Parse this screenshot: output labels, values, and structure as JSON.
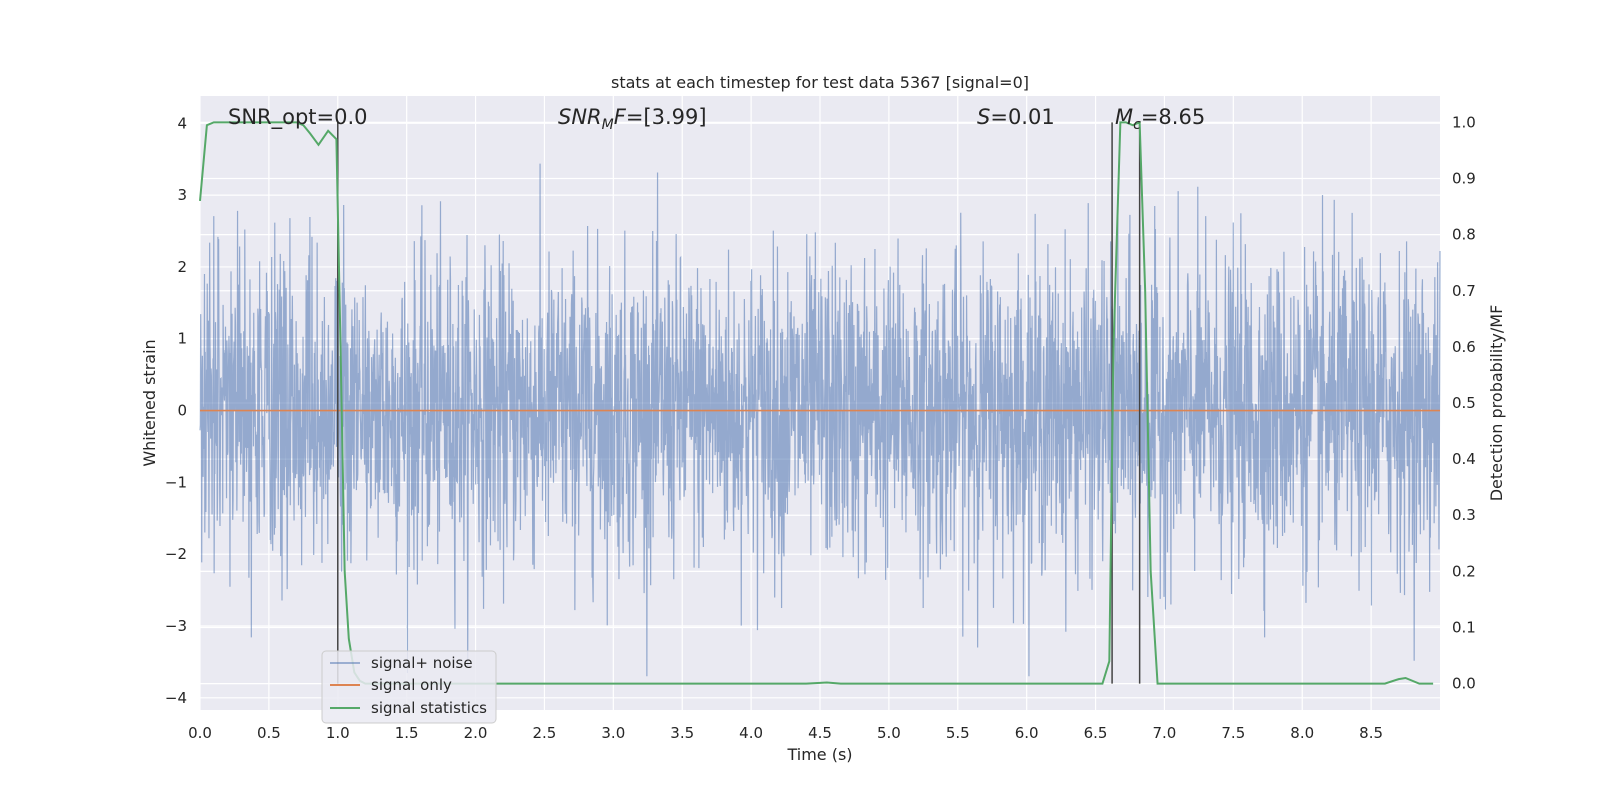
{
  "chart_data": {
    "type": "line",
    "title": "stats at each timestep for test data 5367 [signal=0]",
    "xlabel": "Time (s)",
    "ylabel": "Whitened strain",
    "ylabel_right": "Detection probability/MF",
    "xlim": [
      0.0,
      9.0
    ],
    "ylim": [
      -4.17,
      4.38
    ],
    "ylim_right": [
      -0.047,
      1.047
    ],
    "x_ticks": [
      "0.0",
      "0.5",
      "1.0",
      "1.5",
      "2.0",
      "2.5",
      "3.0",
      "3.5",
      "4.0",
      "4.5",
      "5.0",
      "5.5",
      "6.0",
      "6.5",
      "7.0",
      "7.5",
      "8.0",
      "8.5"
    ],
    "y_ticks": [
      "−4",
      "−3",
      "−2",
      "−1",
      "0",
      "1",
      "2",
      "3",
      "4"
    ],
    "y_ticks_right": [
      "0.0",
      "0.1",
      "0.2",
      "0.3",
      "0.4",
      "0.5",
      "0.6",
      "0.7",
      "0.8",
      "0.9",
      "1.0"
    ],
    "grid": true,
    "legend_position": "lower left",
    "annotations": {
      "snr_opt": "SNR_opt=0.0",
      "snr_mf_prefix": "SNR",
      "snr_mf_sub": "M",
      "snr_mf_mid": "F",
      "snr_mf_value": "=[3.99]",
      "s_prefix": "S",
      "s_value": "=0.01",
      "mc_prefix": "M",
      "mc_sub": "c",
      "mc_value": "=8.65"
    },
    "vertical_lines": [
      1.0,
      6.62,
      6.82
    ],
    "series": [
      {
        "name": "signal+ noise",
        "color": "#4c72b0",
        "opacity": 0.5,
        "axis": "left",
        "description_values": "whitened noise, approx. Gaussian, range about -3.7 to 4.0"
      },
      {
        "name": "signal only",
        "color": "#dd8452",
        "axis": "left",
        "x": [
          0.0,
          9.0
        ],
        "values": [
          0.0,
          0.0
        ]
      },
      {
        "name": "signal statistics",
        "color": "#55a868",
        "axis": "right",
        "x": [
          0.0,
          0.05,
          0.1,
          0.3,
          0.5,
          0.7,
          0.75,
          0.8,
          0.86,
          0.93,
          0.99,
          1.02,
          1.05,
          1.08,
          1.12,
          1.16,
          1.2,
          4.4,
          4.55,
          4.65,
          6.55,
          6.6,
          6.63,
          6.68,
          6.72,
          6.77,
          6.82,
          6.86,
          6.9,
          6.95,
          8.6,
          8.7,
          8.75,
          8.85,
          8.95
        ],
        "values": [
          0.86,
          0.995,
          1.0,
          1.0,
          1.0,
          1.0,
          0.995,
          0.98,
          0.96,
          0.985,
          0.97,
          0.6,
          0.2,
          0.08,
          0.02,
          0.005,
          0.0,
          0.0,
          0.002,
          0.0,
          0.0,
          0.04,
          0.6,
          1.0,
          1.0,
          0.995,
          1.0,
          0.7,
          0.2,
          0.0,
          0.0,
          0.008,
          0.01,
          0.0,
          0.0
        ]
      }
    ]
  }
}
